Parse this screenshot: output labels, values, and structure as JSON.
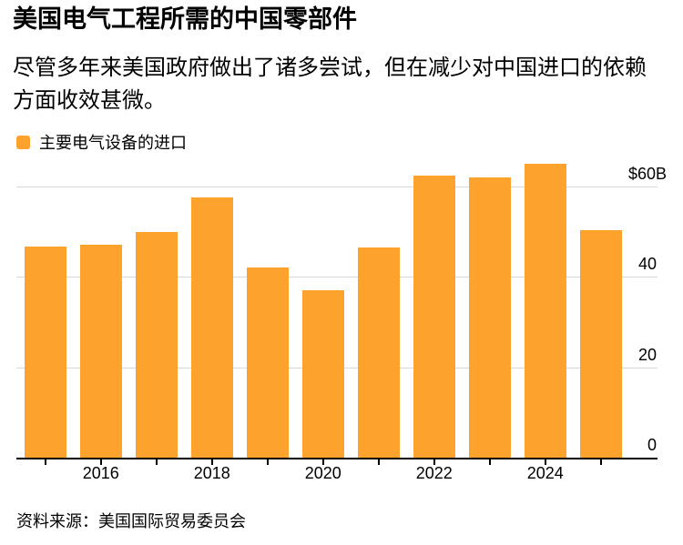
{
  "header": {
    "title": "美国电气工程所需的中国零部件",
    "subtitle": "尽管多年来美国政府做出了诸多尝试，但在减少对中国进口的依赖方面收效甚微。"
  },
  "legend": {
    "label": "主要电气设备的进口",
    "swatch_color": "#FCA22D"
  },
  "chart_data": {
    "type": "bar",
    "title": "美国电气工程所需的中国零部件",
    "series_name": "主要电气设备的进口",
    "unit": "$B (billions USD)",
    "categories": [
      "2015",
      "2016",
      "2017",
      "2018",
      "2019",
      "2020",
      "2021",
      "2022",
      "2023",
      "2024",
      "2025"
    ],
    "values": [
      46.7,
      47.0,
      49.9,
      57.5,
      42.0,
      37.1,
      46.4,
      62.3,
      61.9,
      64.9,
      50.4
    ],
    "ylim": [
      0,
      66
    ],
    "yticks": [
      {
        "value": 60,
        "label": "$60B"
      },
      {
        "value": 40,
        "label": "40"
      },
      {
        "value": 20,
        "label": "20"
      },
      {
        "value": 0,
        "label": "0"
      }
    ],
    "xtick_labels": [
      "2016",
      "2018",
      "2020",
      "2022",
      "2024"
    ],
    "bar_color": "#FCA22D",
    "gridline_color": "#D8D8D8",
    "axis_color": "#000000",
    "grid": true,
    "legend_position": "top-left",
    "ylabels_position": "right"
  },
  "footer": {
    "source": "资料来源：美国国际贸易委员会"
  }
}
